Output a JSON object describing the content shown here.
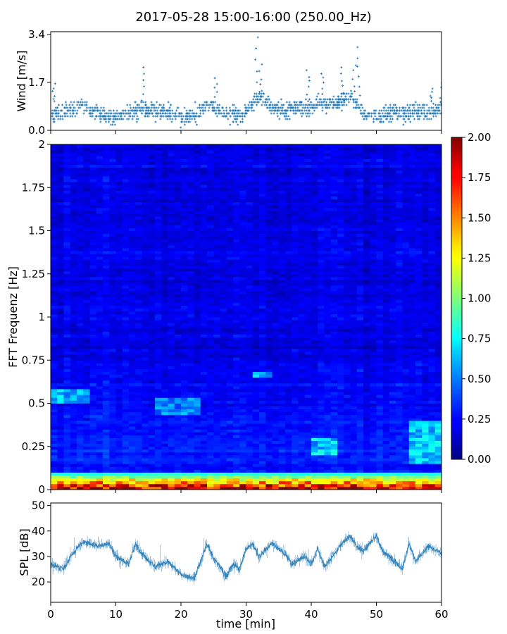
{
  "figure": {
    "title": "2017-05-28 15:00-16:00 (250.00_Hz)"
  },
  "chart_data": [
    {
      "type": "scatter",
      "name": "wind",
      "ylabel": "Wind [m/s]",
      "xlabel": "",
      "xlim": [
        0,
        60
      ],
      "ylim": [
        0,
        3.5
      ],
      "yticks": [
        0.0,
        1.7,
        3.4
      ],
      "ytick_labels": [
        "0.0",
        "1.7",
        "3.4"
      ],
      "color": "#1f77b4",
      "marker": "plus",
      "grid": false,
      "profile": [
        [
          0,
          0.55
        ],
        [
          2,
          0.65
        ],
        [
          4,
          0.75
        ],
        [
          5,
          0.95
        ],
        [
          6,
          0.7
        ],
        [
          8,
          0.55
        ],
        [
          10,
          0.45
        ],
        [
          12,
          0.6
        ],
        [
          14,
          0.75
        ],
        [
          16,
          0.7
        ],
        [
          18,
          0.65
        ],
        [
          20,
          0.5
        ],
        [
          22,
          0.55
        ],
        [
          24,
          0.9
        ],
        [
          26,
          0.7
        ],
        [
          28,
          0.5
        ],
        [
          30,
          0.65
        ],
        [
          32,
          1.2
        ],
        [
          34,
          0.8
        ],
        [
          36,
          0.65
        ],
        [
          38,
          0.85
        ],
        [
          40,
          0.75
        ],
        [
          41,
          1.05
        ],
        [
          43,
          0.9
        ],
        [
          46,
          1.2
        ],
        [
          48,
          0.6
        ],
        [
          50,
          0.5
        ],
        [
          52,
          0.65
        ],
        [
          54,
          0.6
        ],
        [
          56,
          0.7
        ],
        [
          58,
          0.65
        ],
        [
          60,
          0.7
        ]
      ],
      "peaks": [
        [
          0.5,
          1.7
        ],
        [
          14.2,
          2.3
        ],
        [
          25.3,
          1.9
        ],
        [
          31.6,
          3.4
        ],
        [
          32.2,
          2.4
        ],
        [
          39.5,
          2.2
        ],
        [
          41.8,
          2.1
        ],
        [
          44.8,
          2.3
        ],
        [
          47.3,
          3.0
        ],
        [
          46.6,
          2.4
        ],
        [
          60,
          1.7
        ],
        [
          58.5,
          1.5
        ]
      ]
    },
    {
      "type": "heatmap",
      "name": "spectrogram",
      "ylabel": "FFT Frequenz [Hz]",
      "xlim": [
        0,
        60
      ],
      "ylim": [
        0,
        2
      ],
      "yticks": [
        0,
        0.25,
        0.5,
        0.75,
        1,
        1.25,
        1.5,
        1.75,
        2
      ],
      "ytick_labels": [
        "0",
        "0.25",
        "0.5",
        "0.75",
        "1",
        "1.25",
        "1.5",
        "1.75",
        "2"
      ],
      "colormap": "jet",
      "colorbar": {
        "range": [
          0,
          2
        ],
        "ticks": [
          "0.00",
          "0.25",
          "0.50",
          "0.75",
          "1.00",
          "1.25",
          "1.50",
          "1.75",
          "2.00"
        ]
      },
      "features": {
        "low_freq_band_hz": [
          0,
          0.1
        ],
        "low_freq_level": 1.6,
        "background_level": 0.2,
        "bright_patches": [
          {
            "t": [
              0,
              6
            ],
            "f": [
              0.5,
              0.58
            ],
            "level": 0.7
          },
          {
            "t": [
              16,
              23
            ],
            "f": [
              0.44,
              0.54
            ],
            "level": 0.6
          },
          {
            "t": [
              31,
              34
            ],
            "f": [
              0.65,
              0.69
            ],
            "level": 0.75
          },
          {
            "t": [
              40,
              44
            ],
            "f": [
              0.2,
              0.3
            ],
            "level": 0.75
          },
          {
            "t": [
              55,
              60
            ],
            "f": [
              0.15,
              0.4
            ],
            "level": 0.75
          }
        ]
      }
    },
    {
      "type": "line",
      "name": "spl",
      "ylabel": "SPL [dB]",
      "xlabel": "time [min]",
      "xlim": [
        0,
        60
      ],
      "ylim": [
        12,
        51
      ],
      "yticks": [
        20,
        30,
        40,
        50
      ],
      "ytick_labels": [
        "20",
        "30",
        "40",
        "50"
      ],
      "xticks": [
        0,
        10,
        20,
        30,
        40,
        50,
        60
      ],
      "xtick_labels": [
        "0",
        "10",
        "20",
        "30",
        "40",
        "50",
        "60"
      ],
      "color": "#1f77b4",
      "grid": false,
      "trend": [
        [
          0,
          27
        ],
        [
          2,
          25
        ],
        [
          3,
          30
        ],
        [
          5,
          36
        ],
        [
          7,
          34
        ],
        [
          9,
          35
        ],
        [
          10,
          30
        ],
        [
          12,
          27
        ],
        [
          13,
          35
        ],
        [
          14,
          31
        ],
        [
          16,
          26
        ],
        [
          18,
          28
        ],
        [
          20,
          23
        ],
        [
          22,
          21
        ],
        [
          23,
          28
        ],
        [
          24,
          35
        ],
        [
          25,
          29
        ],
        [
          26,
          26
        ],
        [
          27,
          22
        ],
        [
          28,
          27
        ],
        [
          29,
          25
        ],
        [
          30,
          33
        ],
        [
          31,
          35
        ],
        [
          32,
          30
        ],
        [
          34,
          35
        ],
        [
          36,
          31
        ],
        [
          37,
          27
        ],
        [
          39,
          30
        ],
        [
          40,
          27
        ],
        [
          41,
          33
        ],
        [
          42,
          26
        ],
        [
          43,
          29
        ],
        [
          45,
          36
        ],
        [
          46,
          38
        ],
        [
          47,
          34
        ],
        [
          48,
          32
        ],
        [
          50,
          38
        ],
        [
          51,
          32
        ],
        [
          52,
          30
        ],
        [
          54,
          25
        ],
        [
          55,
          35
        ],
        [
          56,
          28
        ],
        [
          58,
          34
        ],
        [
          60,
          31
        ]
      ]
    }
  ]
}
